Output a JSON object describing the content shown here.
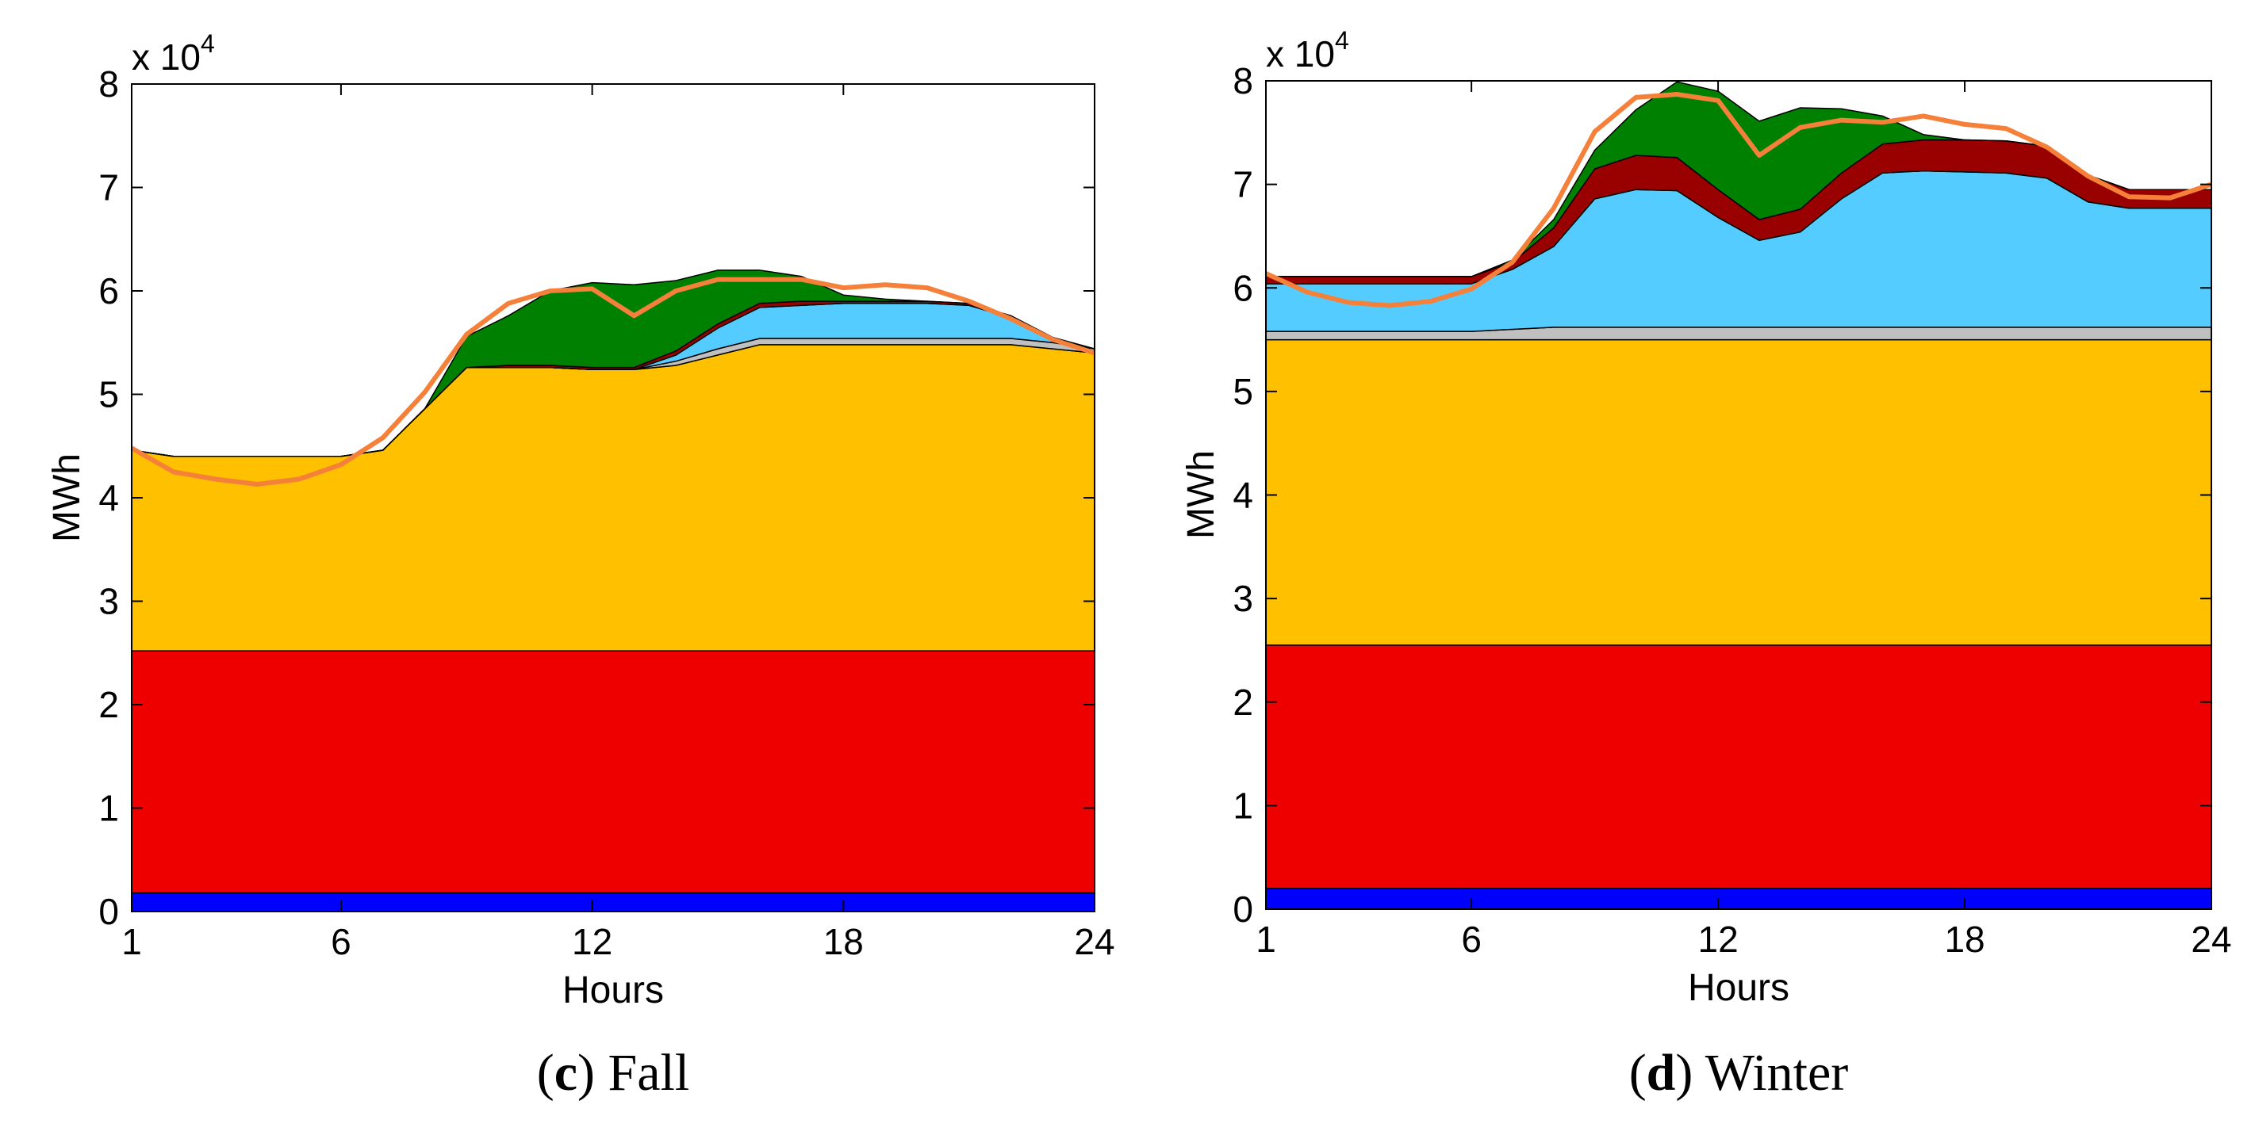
{
  "chart_data": [
    {
      "type": "area",
      "panel_letter": "c",
      "caption": "Fall",
      "xlabel": "Hours",
      "ylabel": "MWh",
      "exponent_label": "x 10",
      "exponent_power": "4",
      "xlim": [
        1,
        24
      ],
      "ylim": [
        0,
        8
      ],
      "xticks": [
        1,
        6,
        12,
        18,
        24
      ],
      "yticks": [
        0,
        1,
        2,
        3,
        4,
        5,
        6,
        7,
        8
      ],
      "stack_series": [
        {
          "name": "blue",
          "color": "#0000ff",
          "values": [
            0.18,
            0.18,
            0.18,
            0.18,
            0.18,
            0.18,
            0.18,
            0.18,
            0.18,
            0.18,
            0.18,
            0.18,
            0.18,
            0.18,
            0.18,
            0.18,
            0.18,
            0.18,
            0.18,
            0.18,
            0.18,
            0.18,
            0.18,
            0.18
          ]
        },
        {
          "name": "red",
          "color": "#ee0000",
          "values": [
            2.34,
            2.34,
            2.34,
            2.34,
            2.34,
            2.34,
            2.34,
            2.34,
            2.34,
            2.34,
            2.34,
            2.34,
            2.34,
            2.34,
            2.34,
            2.34,
            2.34,
            2.34,
            2.34,
            2.34,
            2.34,
            2.34,
            2.34,
            2.34
          ]
        },
        {
          "name": "yellow",
          "color": "#ffc000",
          "values": [
            1.94,
            1.88,
            1.88,
            1.88,
            1.88,
            1.88,
            1.94,
            2.34,
            2.74,
            2.74,
            2.74,
            2.72,
            2.72,
            2.76,
            2.86,
            2.96,
            2.96,
            2.96,
            2.96,
            2.96,
            2.96,
            2.96,
            2.92,
            2.88
          ]
        },
        {
          "name": "gray",
          "color": "#c0c0c0",
          "values": [
            0,
            0,
            0,
            0,
            0,
            0,
            0,
            0,
            0,
            0,
            0,
            0,
            0,
            0.04,
            0.06,
            0.06,
            0.06,
            0.06,
            0.06,
            0.06,
            0.06,
            0.06,
            0.06,
            0.04
          ]
        },
        {
          "name": "cyan",
          "color": "#55ccff",
          "values": [
            0,
            0,
            0,
            0,
            0,
            0,
            0,
            0,
            0,
            0,
            0,
            0,
            0,
            0.06,
            0.2,
            0.3,
            0.32,
            0.34,
            0.34,
            0.34,
            0.32,
            0.2,
            0.04,
            0
          ]
        },
        {
          "name": "darkred",
          "color": "#990000",
          "values": [
            0,
            0,
            0,
            0,
            0,
            0,
            0,
            0,
            0,
            0.02,
            0.02,
            0.02,
            0.02,
            0.04,
            0.04,
            0.04,
            0.04,
            0.02,
            0.02,
            0.02,
            0.02,
            0.02,
            0.01,
            0
          ]
        },
        {
          "name": "green",
          "color": "#008000",
          "values": [
            0,
            0,
            0,
            0,
            0,
            0,
            0,
            0,
            0.3,
            0.48,
            0.72,
            0.82,
            0.8,
            0.68,
            0.52,
            0.32,
            0.24,
            0.06,
            0.02,
            0,
            0,
            0,
            0,
            0
          ]
        }
      ],
      "line_series": {
        "name": "demand",
        "color": "#f4803a",
        "values": [
          4.48,
          4.25,
          4.18,
          4.13,
          4.18,
          4.32,
          4.58,
          5.02,
          5.58,
          5.88,
          6.0,
          6.02,
          5.76,
          6.0,
          6.11,
          6.11,
          6.11,
          6.03,
          6.06,
          6.03,
          5.9,
          5.73,
          5.53,
          5.4
        ]
      }
    },
    {
      "type": "area",
      "panel_letter": "d",
      "caption": "Winter",
      "xlabel": "Hours",
      "ylabel": "MWh",
      "exponent_label": "x 10",
      "exponent_power": "4",
      "xlim": [
        1,
        24
      ],
      "ylim": [
        0,
        8
      ],
      "xticks": [
        1,
        6,
        12,
        18,
        24
      ],
      "yticks": [
        0,
        1,
        2,
        3,
        4,
        5,
        6,
        7,
        8
      ],
      "stack_series": [
        {
          "name": "blue",
          "color": "#0000ff",
          "values": [
            0.2,
            0.2,
            0.2,
            0.2,
            0.2,
            0.2,
            0.2,
            0.2,
            0.2,
            0.2,
            0.2,
            0.2,
            0.2,
            0.2,
            0.2,
            0.2,
            0.2,
            0.2,
            0.2,
            0.2,
            0.2,
            0.2,
            0.2,
            0.2
          ]
        },
        {
          "name": "red",
          "color": "#ee0000",
          "values": [
            2.35,
            2.35,
            2.35,
            2.35,
            2.35,
            2.35,
            2.35,
            2.35,
            2.35,
            2.35,
            2.35,
            2.35,
            2.35,
            2.35,
            2.35,
            2.35,
            2.35,
            2.35,
            2.35,
            2.35,
            2.35,
            2.35,
            2.35,
            2.35
          ]
        },
        {
          "name": "yellow",
          "color": "#ffc000",
          "values": [
            2.95,
            2.95,
            2.95,
            2.95,
            2.95,
            2.95,
            2.95,
            2.95,
            2.95,
            2.95,
            2.95,
            2.95,
            2.95,
            2.95,
            2.95,
            2.95,
            2.95,
            2.95,
            2.95,
            2.95,
            2.95,
            2.95,
            2.95,
            2.95
          ]
        },
        {
          "name": "gray",
          "color": "#c0c0c0",
          "values": [
            0.08,
            0.08,
            0.08,
            0.08,
            0.08,
            0.08,
            0.1,
            0.12,
            0.12,
            0.12,
            0.12,
            0.12,
            0.12,
            0.12,
            0.12,
            0.12,
            0.12,
            0.12,
            0.12,
            0.12,
            0.12,
            0.12,
            0.12,
            0.12
          ]
        },
        {
          "name": "cyan",
          "color": "#55ccff",
          "values": [
            0.46,
            0.46,
            0.46,
            0.46,
            0.46,
            0.46,
            0.58,
            0.78,
            1.24,
            1.33,
            1.32,
            1.06,
            0.84,
            0.92,
            1.24,
            1.49,
            1.51,
            1.5,
            1.49,
            1.44,
            1.21,
            1.15,
            1.15,
            1.15
          ]
        },
        {
          "name": "darkred",
          "color": "#990000",
          "values": [
            0.07,
            0.07,
            0.07,
            0.07,
            0.07,
            0.07,
            0.07,
            0.18,
            0.29,
            0.33,
            0.32,
            0.27,
            0.2,
            0.22,
            0.25,
            0.28,
            0.3,
            0.31,
            0.31,
            0.31,
            0.26,
            0.18,
            0.18,
            0.18
          ]
        },
        {
          "name": "green",
          "color": "#008000",
          "values": [
            0,
            0,
            0,
            0,
            0,
            0,
            0.02,
            0.08,
            0.18,
            0.44,
            0.73,
            0.95,
            0.95,
            0.98,
            0.62,
            0.27,
            0.05,
            0,
            0,
            0,
            0,
            0,
            0,
            0
          ]
        }
      ],
      "line_series": {
        "name": "demand",
        "color": "#f4803a",
        "values": [
          6.14,
          5.96,
          5.86,
          5.83,
          5.87,
          5.99,
          6.25,
          6.77,
          7.51,
          7.84,
          7.87,
          7.81,
          7.28,
          7.55,
          7.62,
          7.6,
          7.66,
          7.58,
          7.54,
          7.36,
          7.08,
          6.88,
          6.87,
          7.0
        ]
      }
    }
  ]
}
